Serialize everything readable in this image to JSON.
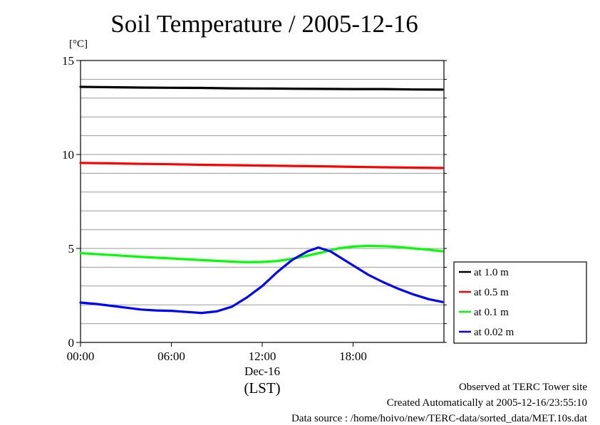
{
  "chart_data": {
    "type": "line",
    "title": "Soil Temperature / 2005-12-16",
    "ylabel": "[°C]",
    "ylim": [
      0,
      15
    ],
    "xlim": [
      0,
      24
    ],
    "y_ticks": [
      0,
      5,
      10,
      15
    ],
    "x_ticks": [
      0,
      6,
      12,
      18
    ],
    "x_tick_labels": [
      "00:00",
      "06:00",
      "12:00",
      "18:00"
    ],
    "x_date_label": "Dec-16",
    "x_axis_label": "(LST)",
    "grid": true,
    "legend_position": "right",
    "series": [
      {
        "name": "at 1.0 m",
        "color": "#000000",
        "x": [
          0,
          2,
          4,
          6,
          8,
          10,
          12,
          14,
          16,
          18,
          20,
          22,
          23.9
        ],
        "y": [
          13.6,
          13.58,
          13.56,
          13.55,
          13.54,
          13.52,
          13.51,
          13.5,
          13.49,
          13.48,
          13.48,
          13.46,
          13.45
        ]
      },
      {
        "name": "at 0.5 m",
        "color": "#ff0000",
        "x": [
          0,
          2,
          4,
          6,
          8,
          10,
          12,
          14,
          16,
          18,
          20,
          22,
          23.9
        ],
        "y": [
          9.55,
          9.53,
          9.5,
          9.48,
          9.45,
          9.43,
          9.41,
          9.39,
          9.37,
          9.34,
          9.32,
          9.3,
          9.28
        ]
      },
      {
        "name": "at 0.1 m",
        "color": "#00ff00",
        "x": [
          0,
          2,
          4,
          6,
          8,
          10,
          11,
          12,
          13,
          14,
          15,
          16,
          17,
          18,
          19,
          20,
          21,
          22,
          23,
          23.9
        ],
        "y": [
          4.75,
          4.65,
          4.55,
          4.47,
          4.38,
          4.3,
          4.27,
          4.28,
          4.33,
          4.45,
          4.62,
          4.8,
          5.0,
          5.1,
          5.14,
          5.12,
          5.08,
          5.0,
          4.93,
          4.85
        ]
      },
      {
        "name": "at 0.02 m",
        "color": "#0000ff",
        "x": [
          0,
          1,
          2,
          3,
          4,
          5,
          6,
          7,
          8,
          9,
          10,
          11,
          12,
          13,
          14,
          15,
          15.7,
          16.5,
          17,
          18,
          19,
          20,
          21,
          22,
          23,
          23.9
        ],
        "y": [
          2.12,
          2.05,
          1.95,
          1.85,
          1.75,
          1.7,
          1.68,
          1.62,
          1.57,
          1.65,
          1.9,
          2.4,
          3.0,
          3.75,
          4.4,
          4.85,
          5.05,
          4.85,
          4.6,
          4.1,
          3.6,
          3.2,
          2.85,
          2.55,
          2.3,
          2.15
        ]
      }
    ]
  },
  "footer": {
    "line1": "Observed at TERC Tower site",
    "line2": "Created Automatically at 2005-12-16/23:55:10",
    "line3": "Data source : /home/hoivo/new/TERC-data/sorted_data/MET.10s.dat"
  }
}
